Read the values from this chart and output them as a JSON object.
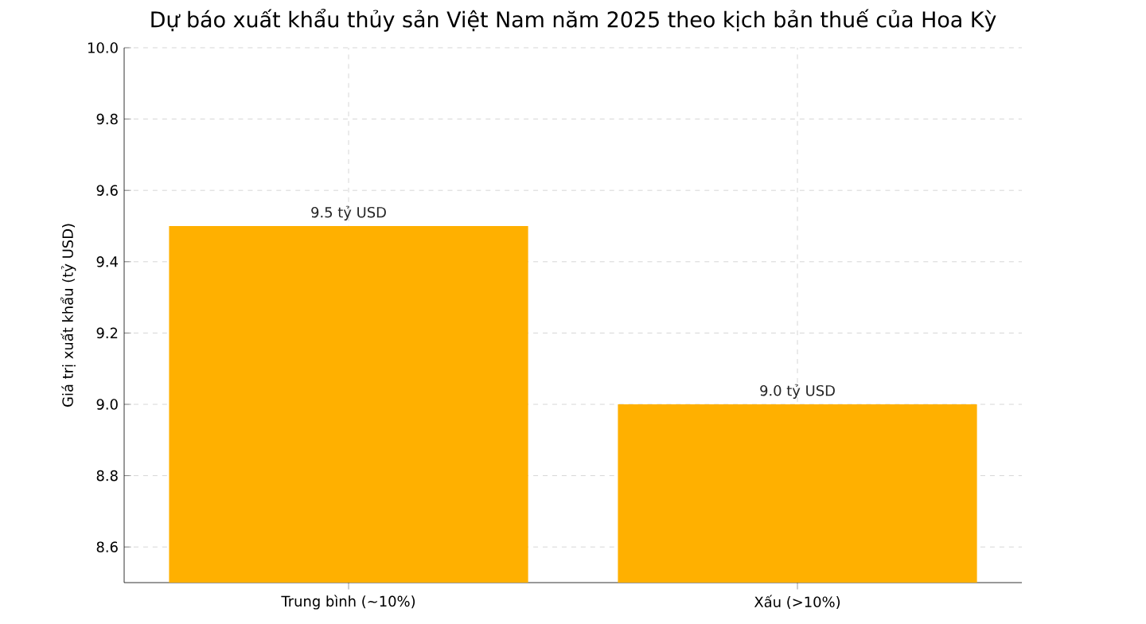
{
  "chart_data": {
    "type": "bar",
    "title": "Dự báo xuất khẩu thủy sản Việt Nam năm 2025 theo kịch bản thuế của Hoa Kỳ",
    "ylabel": "Giá trị xuất khẩu (tỷ USD)",
    "categories": [
      "Trung bình (~10%)",
      "Xấu (>10%)"
    ],
    "values": [
      9.5,
      9.0
    ],
    "value_labels": [
      "9.5 tỷ USD",
      "9.0 tỷ USD"
    ],
    "color": "#ffb000",
    "ylim": [
      8.5,
      10.0
    ],
    "yticks": [
      8.6,
      8.8,
      {
        "value": 9,
        "label": "9.0"
      },
      9.2,
      9.4,
      9.6,
      9.8,
      {
        "value": 10,
        "label": "10.0"
      }
    ],
    "grid": true
  }
}
